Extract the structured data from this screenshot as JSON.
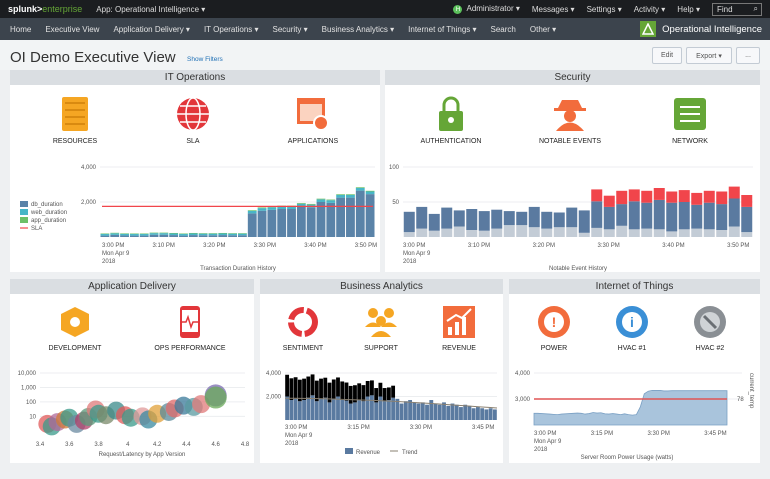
{
  "topbar": {
    "logo_a": "splunk>",
    "logo_b": "enterprise",
    "app": "App: Operational Intelligence ▾",
    "user_initial": "H",
    "items": [
      "Administrator ▾",
      "Messages ▾",
      "Settings ▾",
      "Activity ▾",
      "Help ▾"
    ],
    "find_placeholder": "Find"
  },
  "nav": {
    "items": [
      "Home",
      "Executive View",
      "Application Delivery ▾",
      "IT Operations ▾",
      "Security ▾",
      "Business Analytics ▾",
      "Internet of Things ▾",
      "Search",
      "Other ▾"
    ],
    "brand": "Operational Intelligence"
  },
  "page": {
    "title": "OI Demo Executive View",
    "show_filters": "Show Filters",
    "edit": "Edit",
    "export": "Export ▾",
    "more": "..."
  },
  "colors": {
    "accent": "#65a637",
    "blue": "#5a83a8",
    "red": "#f1454b"
  },
  "panels": {
    "itops": {
      "title": "IT Operations",
      "icons": [
        "RESOURCES",
        "SLA",
        "APPLICATIONS"
      ]
    },
    "security": {
      "title": "Security",
      "icons": [
        "AUTHENTICATION",
        "NOTABLE EVENTS",
        "NETWORK"
      ]
    },
    "appdel": {
      "title": "Application Delivery",
      "icons": [
        "DEVELOPMENT",
        "OPS PERFORMANCE"
      ]
    },
    "business": {
      "title": "Business Analytics",
      "icons": [
        "SENTIMENT",
        "SUPPORT",
        "REVENUE"
      ]
    },
    "iot": {
      "title": "Internet of Things",
      "icons": [
        "POWER",
        "HVAC #1",
        "HVAC #2"
      ]
    }
  },
  "chart_data": [
    {
      "type": "bar",
      "id": "itops",
      "title": "Transaction Duration History",
      "ylim": [
        0,
        4000
      ],
      "yticks": [
        "4,000",
        "2,000"
      ],
      "xticks": [
        "3:00 PM",
        "3:10 PM",
        "3:20 PM",
        "3:30 PM",
        "3:40 PM",
        "3:50 PM"
      ],
      "date": [
        "Mon Apr 9",
        "2018"
      ],
      "legend": [
        "db_duration",
        "web_duration",
        "app_duration",
        "SLA"
      ],
      "sla": 1750,
      "series": [
        {
          "name": "db_duration",
          "values": [
            80,
            120,
            90,
            80,
            80,
            130,
            130,
            110,
            80,
            110,
            100,
            100,
            110,
            100,
            100,
            1350,
            1500,
            1550,
            1600,
            1600,
            1750,
            1700,
            2000,
            1950,
            2250,
            2250,
            2650,
            2450
          ]
        },
        {
          "name": "web_duration",
          "values": [
            90,
            90,
            90,
            90,
            90,
            90,
            90,
            90,
            90,
            90,
            90,
            90,
            90,
            90,
            90,
            140,
            150,
            150,
            150,
            150,
            150,
            150,
            150,
            150,
            150,
            150,
            150,
            150
          ]
        },
        {
          "name": "app_duration",
          "values": [
            30,
            30,
            30,
            30,
            30,
            30,
            30,
            30,
            30,
            30,
            30,
            30,
            30,
            30,
            30,
            40,
            40,
            40,
            40,
            40,
            40,
            40,
            40,
            40,
            40,
            40,
            40,
            40
          ]
        }
      ]
    },
    {
      "type": "bar",
      "id": "security",
      "title": "Notable Event History",
      "ylim": [
        0,
        100
      ],
      "yticks": [
        "100",
        "50"
      ],
      "xticks": [
        "3:00 PM",
        "3:10 PM",
        "3:20 PM",
        "3:30 PM",
        "3:40 PM",
        "3:50 PM"
      ],
      "date": [
        "Mon Apr 9",
        "2018"
      ],
      "series": [
        {
          "name": "low",
          "values": [
            7,
            12,
            9,
            12,
            15,
            10,
            9,
            12,
            17,
            17,
            14,
            12,
            14,
            14,
            6,
            13,
            11,
            16,
            11,
            12,
            11,
            8,
            11,
            12,
            11,
            10,
            15,
            7
          ]
        },
        {
          "name": "medium",
          "values": [
            29,
            31,
            24,
            30,
            23,
            30,
            28,
            27,
            20,
            19,
            29,
            24,
            21,
            28,
            32,
            38,
            32,
            31,
            40,
            37,
            42,
            41,
            39,
            34,
            38,
            37,
            40,
            36
          ]
        },
        {
          "name": "high",
          "values": [
            0,
            0,
            0,
            0,
            0,
            0,
            0,
            0,
            0,
            0,
            0,
            0,
            0,
            0,
            0,
            17,
            16,
            19,
            17,
            17,
            17,
            16,
            17,
            17,
            17,
            18,
            17,
            17
          ]
        }
      ]
    },
    {
      "type": "scatter",
      "id": "appdel",
      "title": "Request/Latency by App Version",
      "xlim": [
        3.4,
        4.8
      ],
      "xticks": [
        "3.4",
        "3.6",
        "3.8",
        "4",
        "4.2",
        "4.4",
        "4.6",
        "4.8"
      ],
      "yticks": [
        "10,000",
        "1,000",
        "100",
        "10"
      ],
      "points": [
        [
          3.45,
          3,
          "#e05a5a"
        ],
        [
          3.48,
          2,
          "#3a9a8a"
        ],
        [
          3.52,
          4,
          "#b06a9a"
        ],
        [
          3.57,
          6,
          "#d07a3a"
        ],
        [
          3.6,
          8,
          "#3a9a8a"
        ],
        [
          3.65,
          3,
          "#6a8aa0"
        ],
        [
          3.7,
          5,
          "#b0406a"
        ],
        [
          3.73,
          9,
          "#5a9a7a"
        ],
        [
          3.78,
          30,
          "#e07a7a"
        ],
        [
          3.8,
          15,
          "#3a9a8a"
        ],
        [
          3.85,
          12,
          "#7a8a6a"
        ],
        [
          3.92,
          25,
          "#3a8a8a"
        ],
        [
          3.98,
          12,
          "#e05a5a"
        ],
        [
          4.02,
          8,
          "#3a9a8a"
        ],
        [
          4.1,
          10,
          "#e09a9a"
        ],
        [
          4.14,
          6,
          "#3a8aa0"
        ],
        [
          4.2,
          15,
          "#e0a03a"
        ],
        [
          4.28,
          20,
          "#5a8a9a"
        ],
        [
          4.32,
          35,
          "#e06a6a"
        ],
        [
          4.38,
          55,
          "#3a7a9a"
        ],
        [
          4.45,
          45,
          "#5a9aa0"
        ],
        [
          4.5,
          70,
          "#e07a7a"
        ],
        [
          4.6,
          280,
          "#7a6ab0"
        ],
        [
          4.6,
          200,
          "#6aaa5a"
        ]
      ]
    },
    {
      "type": "bar",
      "id": "business",
      "title": "",
      "ylim": [
        0,
        4000
      ],
      "yticks": [
        "4,000",
        "2,000"
      ],
      "xticks": [
        "3:00 PM",
        "3:15 PM",
        "3:30 PM",
        "3:45 PM"
      ],
      "date": [
        "Mon Apr 9",
        "2018"
      ],
      "legend": [
        "Revenue",
        "Trend"
      ],
      "series": [
        {
          "name": "Revenue",
          "values": [
            2000,
            1700,
            1800,
            1600,
            1700,
            1900,
            2100,
            1600,
            1800,
            1900,
            1500,
            1800,
            2000,
            1700,
            1650,
            1400,
            1500,
            1700,
            1600,
            2000,
            2100,
            1500,
            2000,
            1600,
            1700,
            1900,
            1800,
            1400,
            1600,
            1700,
            1500,
            1400,
            1500,
            1300,
            1700,
            1400,
            1300,
            1500,
            1200,
            1400,
            1300,
            1100,
            1300,
            1200,
            1000,
            1100,
            1000,
            900,
            1000,
            900
          ]
        },
        {
          "name": "Trend",
          "values": [
            1850,
            1850,
            1840,
            1830,
            1820,
            1800,
            1780,
            1750,
            1720,
            1700,
            1680,
            1650,
            1620,
            1580,
            1540,
            1500,
            1460,
            1420,
            1370,
            1320,
            1270,
            1220,
            1170,
            1120,
            1070,
            1020
          ]
        }
      ]
    },
    {
      "type": "area",
      "id": "iot",
      "title": "Server Room Power Usage (watts)",
      "ylim": [
        2000,
        4000
      ],
      "yticks": [
        "4,000",
        "3,000"
      ],
      "xticks": [
        "3:00 PM",
        "3:15 PM",
        "3:30 PM",
        "3:45 PM"
      ],
      "date": [
        "Mon Apr 9",
        "2018"
      ],
      "y2label": "current_temp",
      "y2tick": "78",
      "threshold": 3000,
      "series": [
        {
          "name": "power",
          "values": [
            2450,
            2450,
            2440,
            2430,
            2420,
            2410,
            2400,
            2420,
            2430,
            2440,
            2450,
            2460,
            2450,
            2420,
            2440,
            2480,
            2460,
            2470,
            2430,
            2420,
            2440,
            2420,
            2400,
            2430,
            2400,
            2380,
            2400,
            2700,
            3200,
            3300,
            3330,
            3330,
            3330,
            3310,
            3310,
            3320,
            3320,
            3320,
            3320,
            3320,
            3320,
            3320,
            3320,
            3320,
            3320,
            3320,
            3320,
            3320,
            3320,
            3320
          ]
        }
      ]
    }
  ]
}
